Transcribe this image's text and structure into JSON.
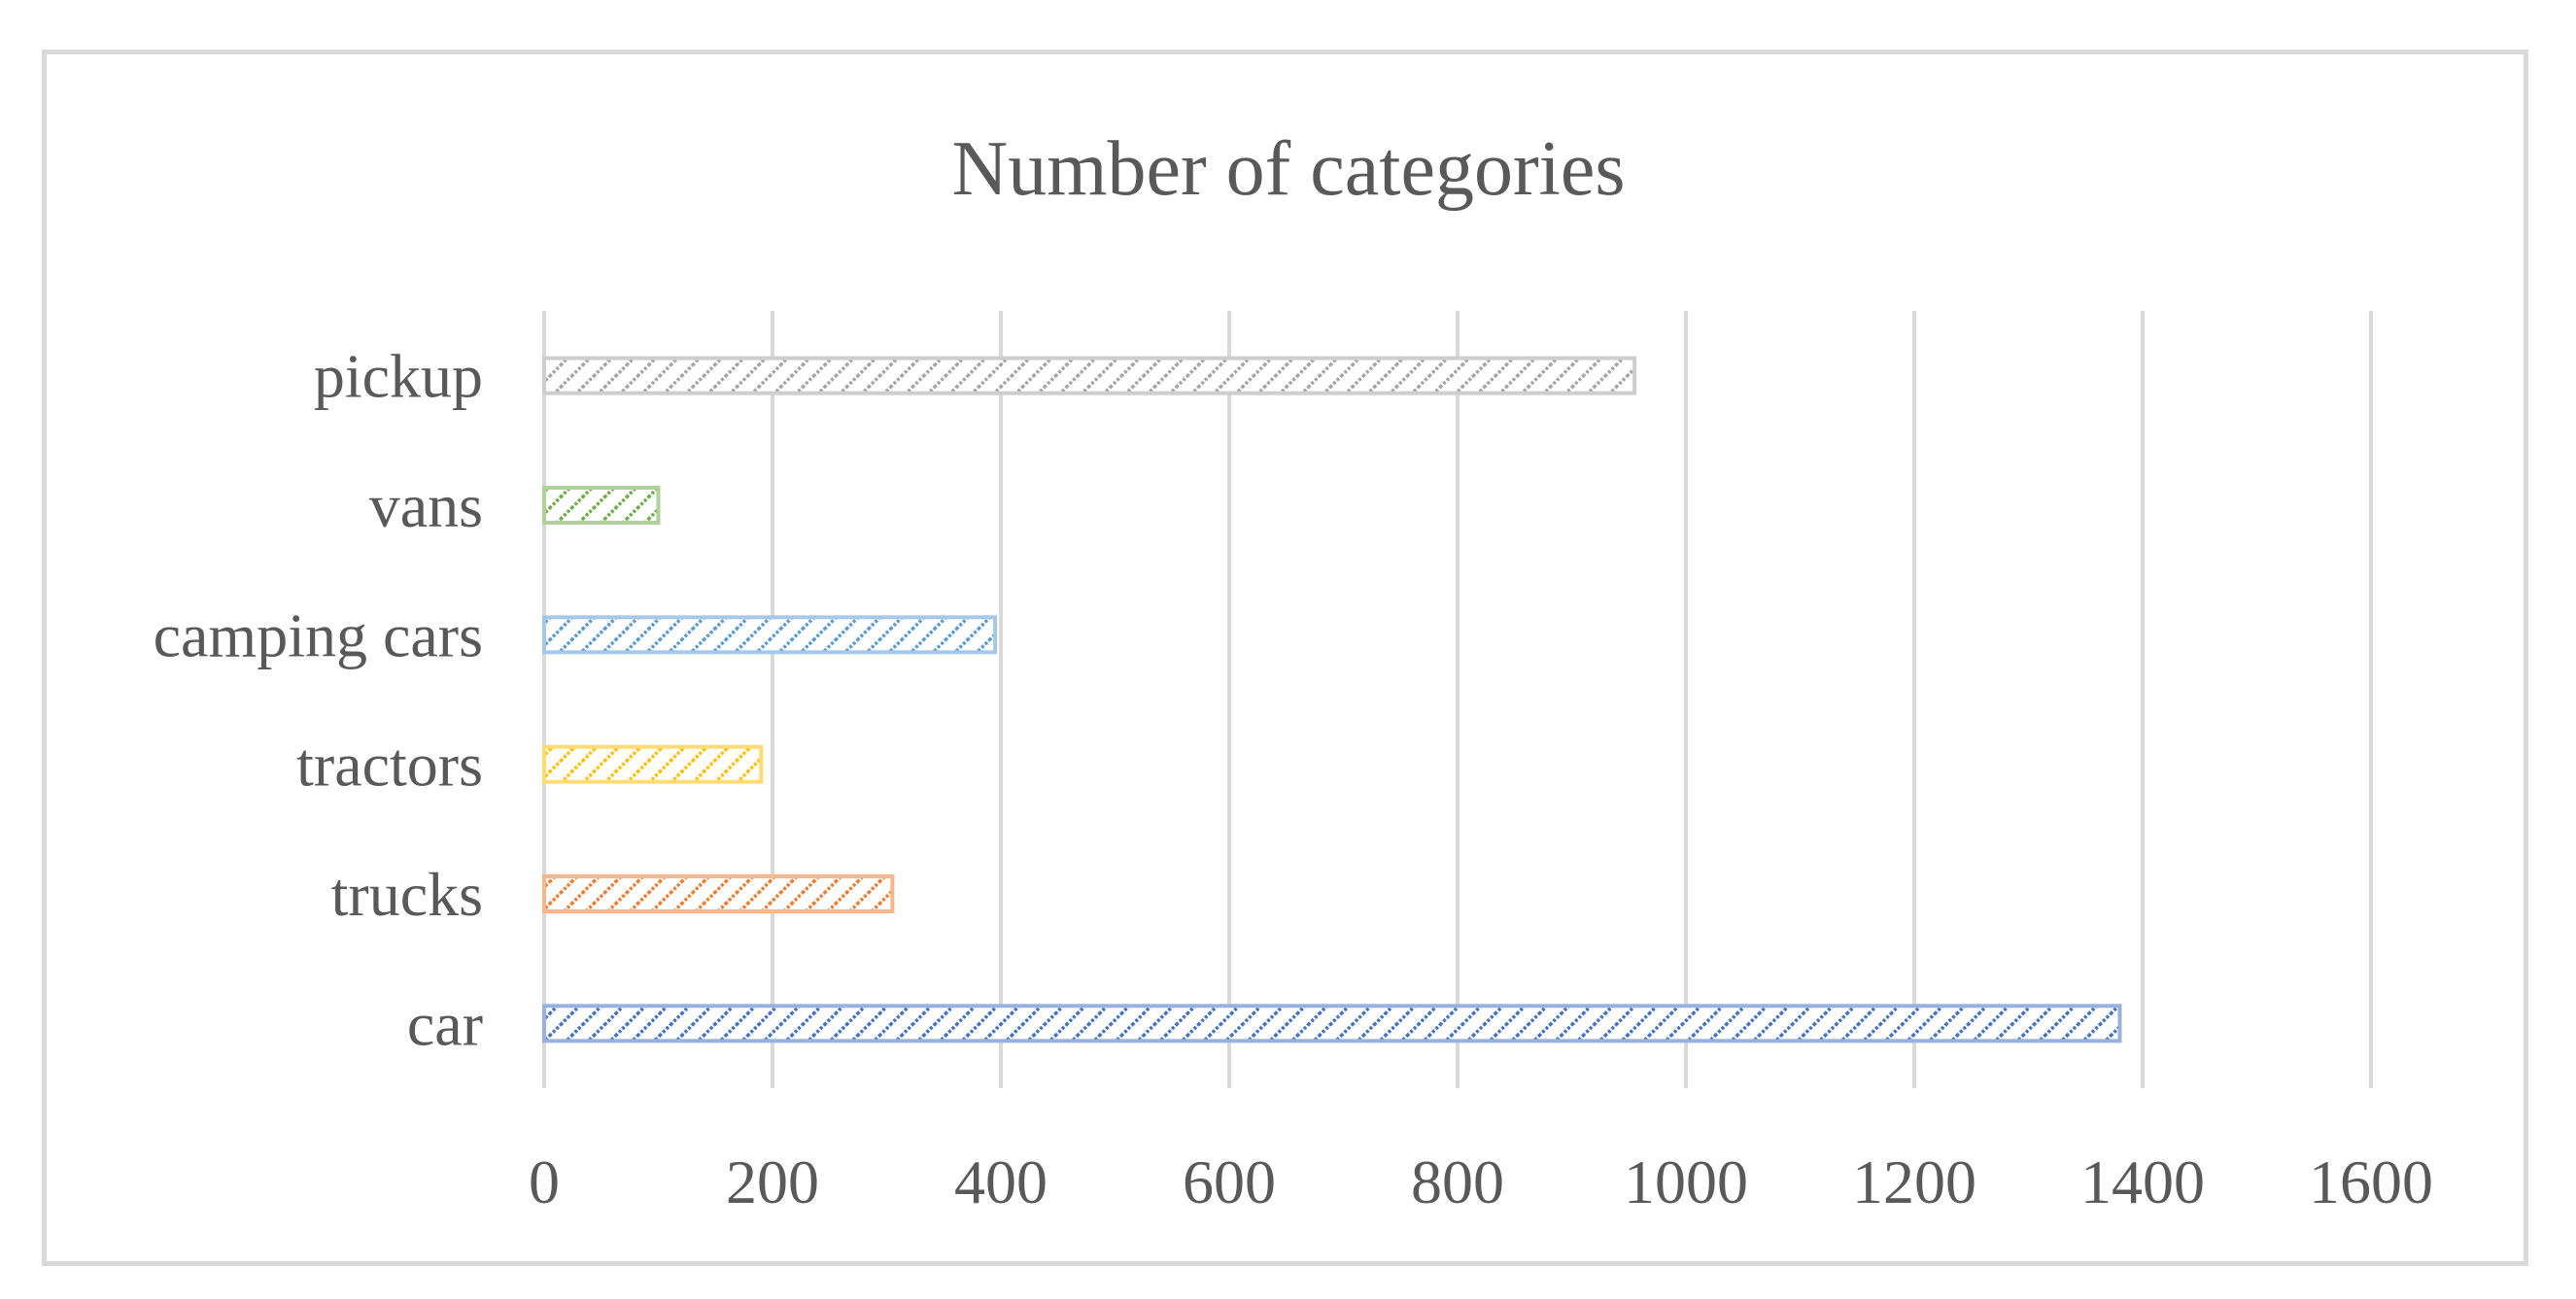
{
  "chart_data": {
    "type": "bar",
    "orientation": "horizontal",
    "title": "Number of categories",
    "categories": [
      "car",
      "trucks",
      "tractors",
      "camping cars",
      "vans",
      "pickup"
    ],
    "values": [
      1380,
      305,
      190,
      395,
      100,
      955
    ],
    "xlim": [
      0,
      1600
    ],
    "xticks": [
      0,
      200,
      400,
      600,
      800,
      1000,
      1200,
      1400,
      1600
    ],
    "xlabel": "",
    "ylabel": "",
    "grid": "vertical",
    "legend": "none",
    "fill_pattern": "diagonal-hatch",
    "colors": [
      "#4472c4",
      "#ed7d31",
      "#ffc000",
      "#5b9bd5",
      "#70ad47",
      "#a5a5a5"
    ]
  }
}
